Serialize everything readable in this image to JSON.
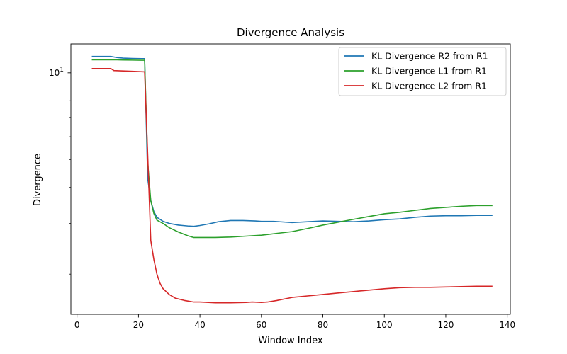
{
  "chart_data": {
    "type": "line",
    "title": "Divergence Analysis",
    "xlabel": "Window Index",
    "ylabel": "Divergence",
    "xlim": [
      -2,
      141
    ],
    "ylim": [
      1.45,
      12.6
    ],
    "yscale": "log",
    "xticks": [
      0,
      20,
      40,
      60,
      80,
      100,
      120,
      140
    ],
    "yticks_major": [
      {
        "value": 10,
        "base": "10",
        "exp": "1"
      }
    ],
    "yticks_minor": [
      2,
      3,
      4,
      5,
      6,
      7,
      8,
      9
    ],
    "grid": false,
    "legend_position": "top-right",
    "series": [
      {
        "name": "KL Divergence R2 from R1",
        "color": "#1f77b4",
        "x": [
          5,
          8,
          11,
          13,
          15,
          18,
          21,
          22,
          23,
          24,
          25,
          26,
          28,
          30,
          33,
          36,
          38,
          40,
          43,
          46,
          50,
          54,
          58,
          60,
          64,
          70,
          75,
          80,
          85,
          90,
          95,
          100,
          105,
          110,
          115,
          120,
          125,
          130,
          135
        ],
        "y": [
          11.4,
          11.4,
          11.4,
          11.3,
          11.25,
          11.22,
          11.2,
          11.2,
          4.3,
          3.6,
          3.3,
          3.15,
          3.05,
          3.0,
          2.96,
          2.94,
          2.93,
          2.95,
          2.99,
          3.04,
          3.07,
          3.07,
          3.06,
          3.05,
          3.05,
          3.02,
          3.04,
          3.06,
          3.05,
          3.04,
          3.06,
          3.09,
          3.11,
          3.15,
          3.18,
          3.19,
          3.19,
          3.2,
          3.2
        ]
      },
      {
        "name": "KL Divergence L1 from R1",
        "color": "#2ca02c",
        "x": [
          5,
          8,
          11,
          13,
          15,
          18,
          21,
          22,
          23,
          24,
          25,
          26,
          28,
          30,
          33,
          36,
          38,
          40,
          45,
          50,
          55,
          60,
          65,
          70,
          75,
          80,
          85,
          90,
          95,
          100,
          105,
          110,
          115,
          120,
          125,
          130,
          135
        ],
        "y": [
          11.1,
          11.1,
          11.1,
          11.1,
          11.08,
          11.07,
          11.06,
          11.06,
          4.9,
          3.6,
          3.25,
          3.08,
          3.0,
          2.9,
          2.8,
          2.72,
          2.68,
          2.68,
          2.68,
          2.69,
          2.71,
          2.73,
          2.77,
          2.81,
          2.88,
          2.96,
          3.03,
          3.1,
          3.17,
          3.24,
          3.28,
          3.33,
          3.38,
          3.41,
          3.44,
          3.46,
          3.46
        ]
      },
      {
        "name": "KL Divergence L2 from R1",
        "color": "#d62728",
        "x": [
          5,
          8,
          11,
          12,
          15,
          18,
          20,
          22,
          23,
          24,
          25,
          26,
          27,
          28,
          30,
          32,
          35,
          38,
          40,
          45,
          50,
          55,
          57,
          60,
          62,
          65,
          70,
          75,
          80,
          85,
          90,
          95,
          100,
          105,
          110,
          115,
          120,
          125,
          130,
          135
        ],
        "y": [
          10.35,
          10.35,
          10.35,
          10.18,
          10.15,
          10.12,
          10.1,
          10.08,
          5.2,
          2.62,
          2.25,
          2.0,
          1.86,
          1.78,
          1.7,
          1.65,
          1.62,
          1.6,
          1.6,
          1.59,
          1.59,
          1.595,
          1.6,
          1.595,
          1.6,
          1.62,
          1.66,
          1.68,
          1.7,
          1.72,
          1.74,
          1.76,
          1.78,
          1.795,
          1.8,
          1.8,
          1.805,
          1.81,
          1.815,
          1.815
        ]
      }
    ]
  }
}
